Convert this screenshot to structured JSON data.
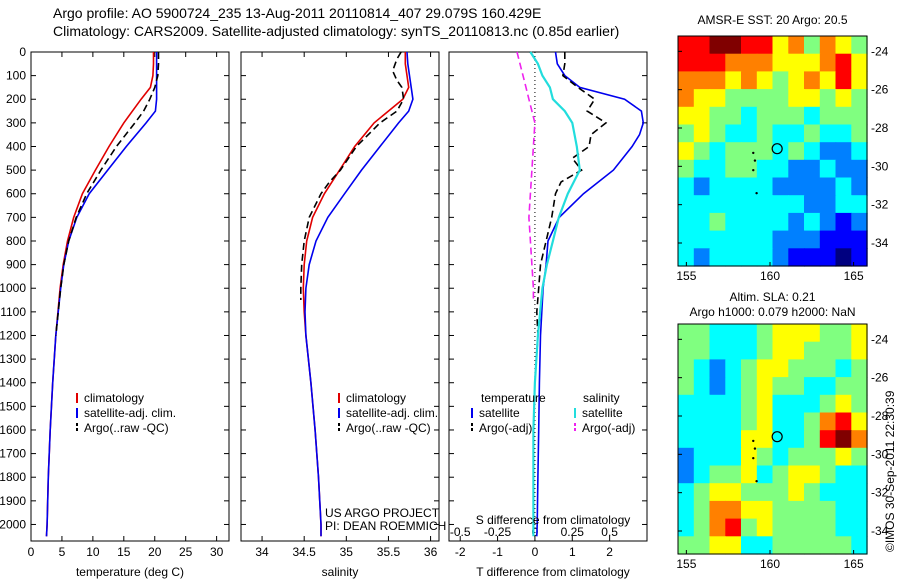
{
  "header": {
    "line1": "Argo profile: AO 5900724_235 13-Aug-2011 20110814_407 29.079S 160.429E",
    "line2": "Climatology: CARS2009. Satellite-adjusted climatology: synTS_20110813.nc (0.85d earlier)"
  },
  "credit": {
    "line1": "US ARGO PROJECT",
    "line2": "PI: DEAN ROEMMICH"
  },
  "stamp": "©IMOS 30-Sep-2011 22:30:39",
  "colors": {
    "climatology": "#e00000",
    "satellite": "#0000ee",
    "argo": "#000000",
    "temp_sat_diff": "#0000ee",
    "sal_sat_diff": "#22dddd",
    "sal_argo_diff": "#ee22ee"
  },
  "chart_data": [
    {
      "type": "line",
      "id": "temperature",
      "xlabel": "temperature (deg C)",
      "ylabel": "",
      "xlim": [
        0,
        32
      ],
      "ylim": [
        2070,
        0
      ],
      "xticks": [
        0,
        5,
        10,
        15,
        20,
        25,
        30
      ],
      "yticks": [
        0,
        100,
        200,
        300,
        400,
        500,
        600,
        700,
        800,
        900,
        1000,
        1100,
        1200,
        1300,
        1400,
        1500,
        1600,
        1700,
        1800,
        1900,
        2000
      ],
      "legend": [
        "climatology",
        "satellite-adj. clim.",
        "Argo(..raw -QC)"
      ],
      "series": [
        {
          "name": "climatology",
          "style": "solid",
          "depth": [
            0,
            50,
            100,
            150,
            200,
            300,
            400,
            500,
            600,
            700,
            800,
            900,
            1000,
            1200,
            1400,
            1600,
            1800,
            2000,
            2050
          ],
          "values": [
            19.8,
            19.8,
            19.7,
            19.3,
            17.8,
            15.0,
            12.6,
            10.4,
            8.3,
            6.9,
            5.9,
            5.2,
            4.7,
            4.0,
            3.5,
            3.1,
            2.8,
            2.6,
            2.5
          ]
        },
        {
          "name": "satellite-adj. clim.",
          "style": "solid",
          "depth": [
            0,
            50,
            100,
            150,
            200,
            250,
            300,
            400,
            500,
            600,
            700,
            800,
            900,
            1000,
            1200,
            1400,
            1600,
            1800,
            2000,
            2050
          ],
          "values": [
            20.3,
            20.3,
            20.3,
            20.3,
            20.3,
            20.1,
            18.6,
            15.4,
            12.4,
            9.4,
            7.4,
            6.1,
            5.3,
            4.8,
            4.0,
            3.5,
            3.1,
            2.8,
            2.6,
            2.5
          ]
        },
        {
          "name": "Argo(..raw -QC)",
          "style": "dashed",
          "depth": [
            0,
            50,
            100,
            150,
            200,
            250,
            300,
            400,
            500,
            600,
            700,
            800,
            900,
            1000,
            1200
          ],
          "values": [
            20.6,
            20.6,
            20.5,
            20.0,
            19.2,
            18.2,
            16.8,
            13.8,
            11.3,
            9.0,
            7.3,
            6.1,
            5.3,
            4.8,
            4.0
          ]
        }
      ]
    },
    {
      "type": "line",
      "id": "salinity",
      "xlabel": "salinity",
      "xlim": [
        33.75,
        36.1
      ],
      "ylim": [
        2070,
        0
      ],
      "xticks": [
        34,
        34.5,
        35,
        35.5,
        36
      ],
      "legend": [
        "climatology",
        "satellite-adj. clim.",
        "Argo(..raw -QC)"
      ],
      "series": [
        {
          "name": "climatology",
          "style": "solid",
          "depth": [
            0,
            50,
            100,
            150,
            200,
            250,
            300,
            400,
            500,
            600,
            700,
            800,
            900,
            1000,
            1100,
            1200,
            1300,
            1400,
            1600,
            1800,
            2000,
            2050
          ],
          "values": [
            35.7,
            35.7,
            35.72,
            35.74,
            35.67,
            35.5,
            35.33,
            35.1,
            34.92,
            34.74,
            34.6,
            34.53,
            34.5,
            34.49,
            34.5,
            34.52,
            34.55,
            34.58,
            34.63,
            34.67,
            34.7,
            34.7
          ]
        },
        {
          "name": "satellite-adj. clim.",
          "style": "solid",
          "depth": [
            0,
            50,
            100,
            150,
            200,
            250,
            300,
            400,
            500,
            600,
            700,
            800,
            900,
            1000,
            1100,
            1200,
            1300,
            1400,
            1600,
            1800,
            2000,
            2050
          ],
          "values": [
            35.72,
            35.73,
            35.75,
            35.77,
            35.79,
            35.74,
            35.62,
            35.4,
            35.18,
            34.98,
            34.78,
            34.64,
            34.56,
            34.52,
            34.51,
            34.52,
            34.55,
            34.58,
            34.63,
            34.67,
            34.7,
            34.7
          ]
        },
        {
          "name": "Argo(..raw -QC)",
          "style": "dashed",
          "depth": [
            0,
            30,
            80,
            120,
            150,
            200,
            250,
            300,
            400,
            500,
            550,
            600,
            700,
            800,
            900,
            1000,
            1050
          ],
          "values": [
            35.65,
            35.6,
            35.55,
            35.6,
            35.66,
            35.68,
            35.6,
            35.4,
            35.12,
            34.93,
            34.8,
            34.7,
            34.56,
            34.5,
            34.47,
            34.46,
            34.46
          ]
        }
      ]
    },
    {
      "type": "line",
      "id": "difference",
      "xlabel": "T difference from climatology",
      "xlabel_top": "S difference from climatology",
      "xlim": [
        -2.3,
        3.0
      ],
      "ylim": [
        2070,
        0
      ],
      "xticks": [
        -2,
        -1,
        0,
        1,
        2
      ],
      "xticks_top": [
        -0.5,
        -0.25,
        0,
        0.25,
        0.5
      ],
      "legend_titles": [
        "temperature",
        "salinity"
      ],
      "legend": [
        "satellite",
        "Argo(-adj)",
        "satellite",
        "Argo(-adj)"
      ],
      "series": [
        {
          "name": "temperature satellite",
          "quantity": "T",
          "style": "solid",
          "depth": [
            0,
            50,
            100,
            150,
            200,
            250,
            300,
            350,
            400,
            500,
            600,
            700,
            800,
            900,
            1000,
            1200,
            1400,
            1600,
            1800,
            2000,
            2050
          ],
          "values": [
            0.55,
            0.6,
            0.8,
            1.2,
            2.4,
            2.85,
            2.9,
            2.8,
            2.6,
            2.1,
            1.3,
            0.65,
            0.35,
            0.3,
            0.22,
            0.15,
            0.12,
            0.1,
            0.08,
            0.06,
            0.05
          ]
        },
        {
          "name": "temperature Argo(-adj)",
          "quantity": "T",
          "style": "dashed",
          "depth": [
            0,
            50,
            100,
            150,
            200,
            250,
            300,
            350,
            400,
            450,
            500,
            550,
            600,
            700,
            800,
            900,
            1000,
            1100,
            1200,
            1250
          ],
          "values": [
            0.8,
            0.8,
            0.75,
            1.15,
            1.6,
            1.4,
            1.9,
            1.5,
            1.45,
            1.0,
            1.25,
            0.7,
            0.55,
            0.45,
            0.3,
            0.15,
            0.1,
            0.05,
            0.08,
            0.06
          ]
        },
        {
          "name": "salinity satellite",
          "quantity": "S",
          "style": "solid",
          "depth": [
            0,
            50,
            100,
            150,
            200,
            250,
            300,
            400,
            500,
            600,
            700,
            800,
            900,
            1000,
            1200,
            1400,
            1600,
            1800,
            2000,
            2050
          ],
          "values": [
            -0.03,
            0.02,
            0.05,
            0.1,
            0.12,
            0.2,
            0.25,
            0.28,
            0.3,
            0.22,
            0.16,
            0.12,
            0.08,
            0.05,
            0.02,
            0.0,
            -0.01,
            -0.01,
            -0.01,
            -0.01
          ]
        },
        {
          "name": "salinity Argo(-adj)",
          "quantity": "S",
          "style": "dashed",
          "depth": [
            0,
            50,
            100,
            150,
            200,
            250,
            300,
            400,
            500,
            600,
            700,
            800,
            900,
            1000,
            1050
          ],
          "values": [
            -0.12,
            -0.1,
            -0.08,
            -0.06,
            -0.04,
            -0.02,
            0.0,
            -0.01,
            -0.02,
            -0.03,
            -0.04,
            -0.03,
            -0.02,
            -0.01,
            -0.01
          ]
        }
      ]
    },
    {
      "type": "heatmap",
      "id": "sst-map",
      "title": "AMSR-E SST: 20 Argo: 20.5",
      "xlim": [
        154.5,
        165.8
      ],
      "ylim": [
        -35.2,
        -23.2
      ],
      "xticks": [
        155,
        160,
        165
      ],
      "yticks": [
        -24,
        -26,
        -28,
        -30,
        -32,
        -34
      ],
      "argo_float": {
        "lon": 160.429,
        "lat": -29.079
      },
      "track_lon": [
        159.0,
        159.1,
        159.0,
        159.2
      ],
      "track_lat": [
        -29.3,
        -29.7,
        -30.2,
        -31.4
      ],
      "grid_cols": 12,
      "grid_rows": 13,
      "values": [
        [
          7,
          7,
          8,
          8,
          7,
          7,
          5,
          6,
          4,
          6,
          5,
          4
        ],
        [
          7,
          7,
          7,
          6,
          6,
          6,
          5,
          5,
          5,
          6,
          7,
          5
        ],
        [
          6,
          6,
          6,
          5,
          6,
          5,
          4,
          5,
          6,
          5,
          7,
          5
        ],
        [
          6,
          5,
          5,
          4,
          4,
          4,
          4,
          5,
          5,
          4,
          5,
          4
        ],
        [
          5,
          5,
          4,
          4,
          3,
          4,
          4,
          4,
          3,
          4,
          4,
          4
        ],
        [
          4,
          5,
          4,
          3,
          3,
          4,
          3,
          3,
          4,
          3,
          3,
          4
        ],
        [
          5,
          4,
          3,
          4,
          4,
          4,
          3,
          4,
          3,
          2,
          2,
          3
        ],
        [
          4,
          3,
          3,
          4,
          4,
          3,
          3,
          2,
          2,
          3,
          2,
          2
        ],
        [
          3,
          2,
          3,
          3,
          3,
          3,
          2,
          2,
          2,
          2,
          3,
          2
        ],
        [
          3,
          3,
          3,
          3,
          3,
          3,
          3,
          3,
          2,
          2,
          3,
          3
        ],
        [
          3,
          3,
          4,
          3,
          3,
          3,
          3,
          2,
          3,
          2,
          1,
          2
        ],
        [
          3,
          3,
          3,
          3,
          3,
          3,
          2,
          2,
          2,
          1,
          1,
          1
        ],
        [
          3,
          2,
          3,
          3,
          3,
          3,
          2,
          1,
          1,
          1,
          0,
          1
        ]
      ]
    },
    {
      "type": "heatmap",
      "id": "sla-map",
      "title": "Altim. SLA: 0.21",
      "subtitle": "Argo h1000: 0.079 h2000: NaN",
      "xlim": [
        154.5,
        165.8
      ],
      "ylim": [
        -35.2,
        -23.2
      ],
      "xticks": [
        155,
        160,
        165
      ],
      "yticks": [
        -24,
        -26,
        -28,
        -30,
        -32,
        -34
      ],
      "argo_float": {
        "lon": 160.429,
        "lat": -29.079
      },
      "track_lon": [
        159.0,
        159.1,
        159.0,
        159.2
      ],
      "track_lat": [
        -29.3,
        -29.7,
        -30.2,
        -31.4
      ],
      "grid_cols": 12,
      "grid_rows": 13,
      "values": [
        [
          4,
          4,
          3,
          3,
          3,
          4,
          5,
          5,
          5,
          4,
          4,
          5
        ],
        [
          4,
          4,
          3,
          3,
          3,
          4,
          5,
          5,
          4,
          4,
          4,
          5
        ],
        [
          4,
          3,
          2,
          3,
          4,
          5,
          5,
          4,
          4,
          4,
          3,
          4
        ],
        [
          4,
          3,
          2,
          3,
          4,
          5,
          4,
          4,
          3,
          3,
          4,
          4
        ],
        [
          3,
          3,
          3,
          3,
          4,
          5,
          3,
          3,
          3,
          4,
          5,
          4
        ],
        [
          3,
          3,
          3,
          3,
          4,
          5,
          3,
          3,
          4,
          6,
          7,
          5
        ],
        [
          3,
          3,
          3,
          3,
          5,
          5,
          3,
          3,
          4,
          7,
          8,
          6
        ],
        [
          2,
          3,
          3,
          3,
          5,
          4,
          3,
          4,
          4,
          4,
          5,
          4
        ],
        [
          2,
          3,
          4,
          4,
          5,
          3,
          4,
          5,
          5,
          4,
          3,
          3
        ],
        [
          3,
          4,
          5,
          5,
          4,
          4,
          4,
          5,
          4,
          3,
          3,
          3
        ],
        [
          3,
          4,
          6,
          6,
          5,
          5,
          4,
          4,
          4,
          4,
          3,
          3
        ],
        [
          3,
          4,
          6,
          7,
          4,
          5,
          4,
          4,
          4,
          4,
          3,
          3
        ],
        [
          4,
          4,
          5,
          5,
          3,
          3,
          4,
          4,
          4,
          4,
          4,
          3
        ]
      ]
    }
  ]
}
